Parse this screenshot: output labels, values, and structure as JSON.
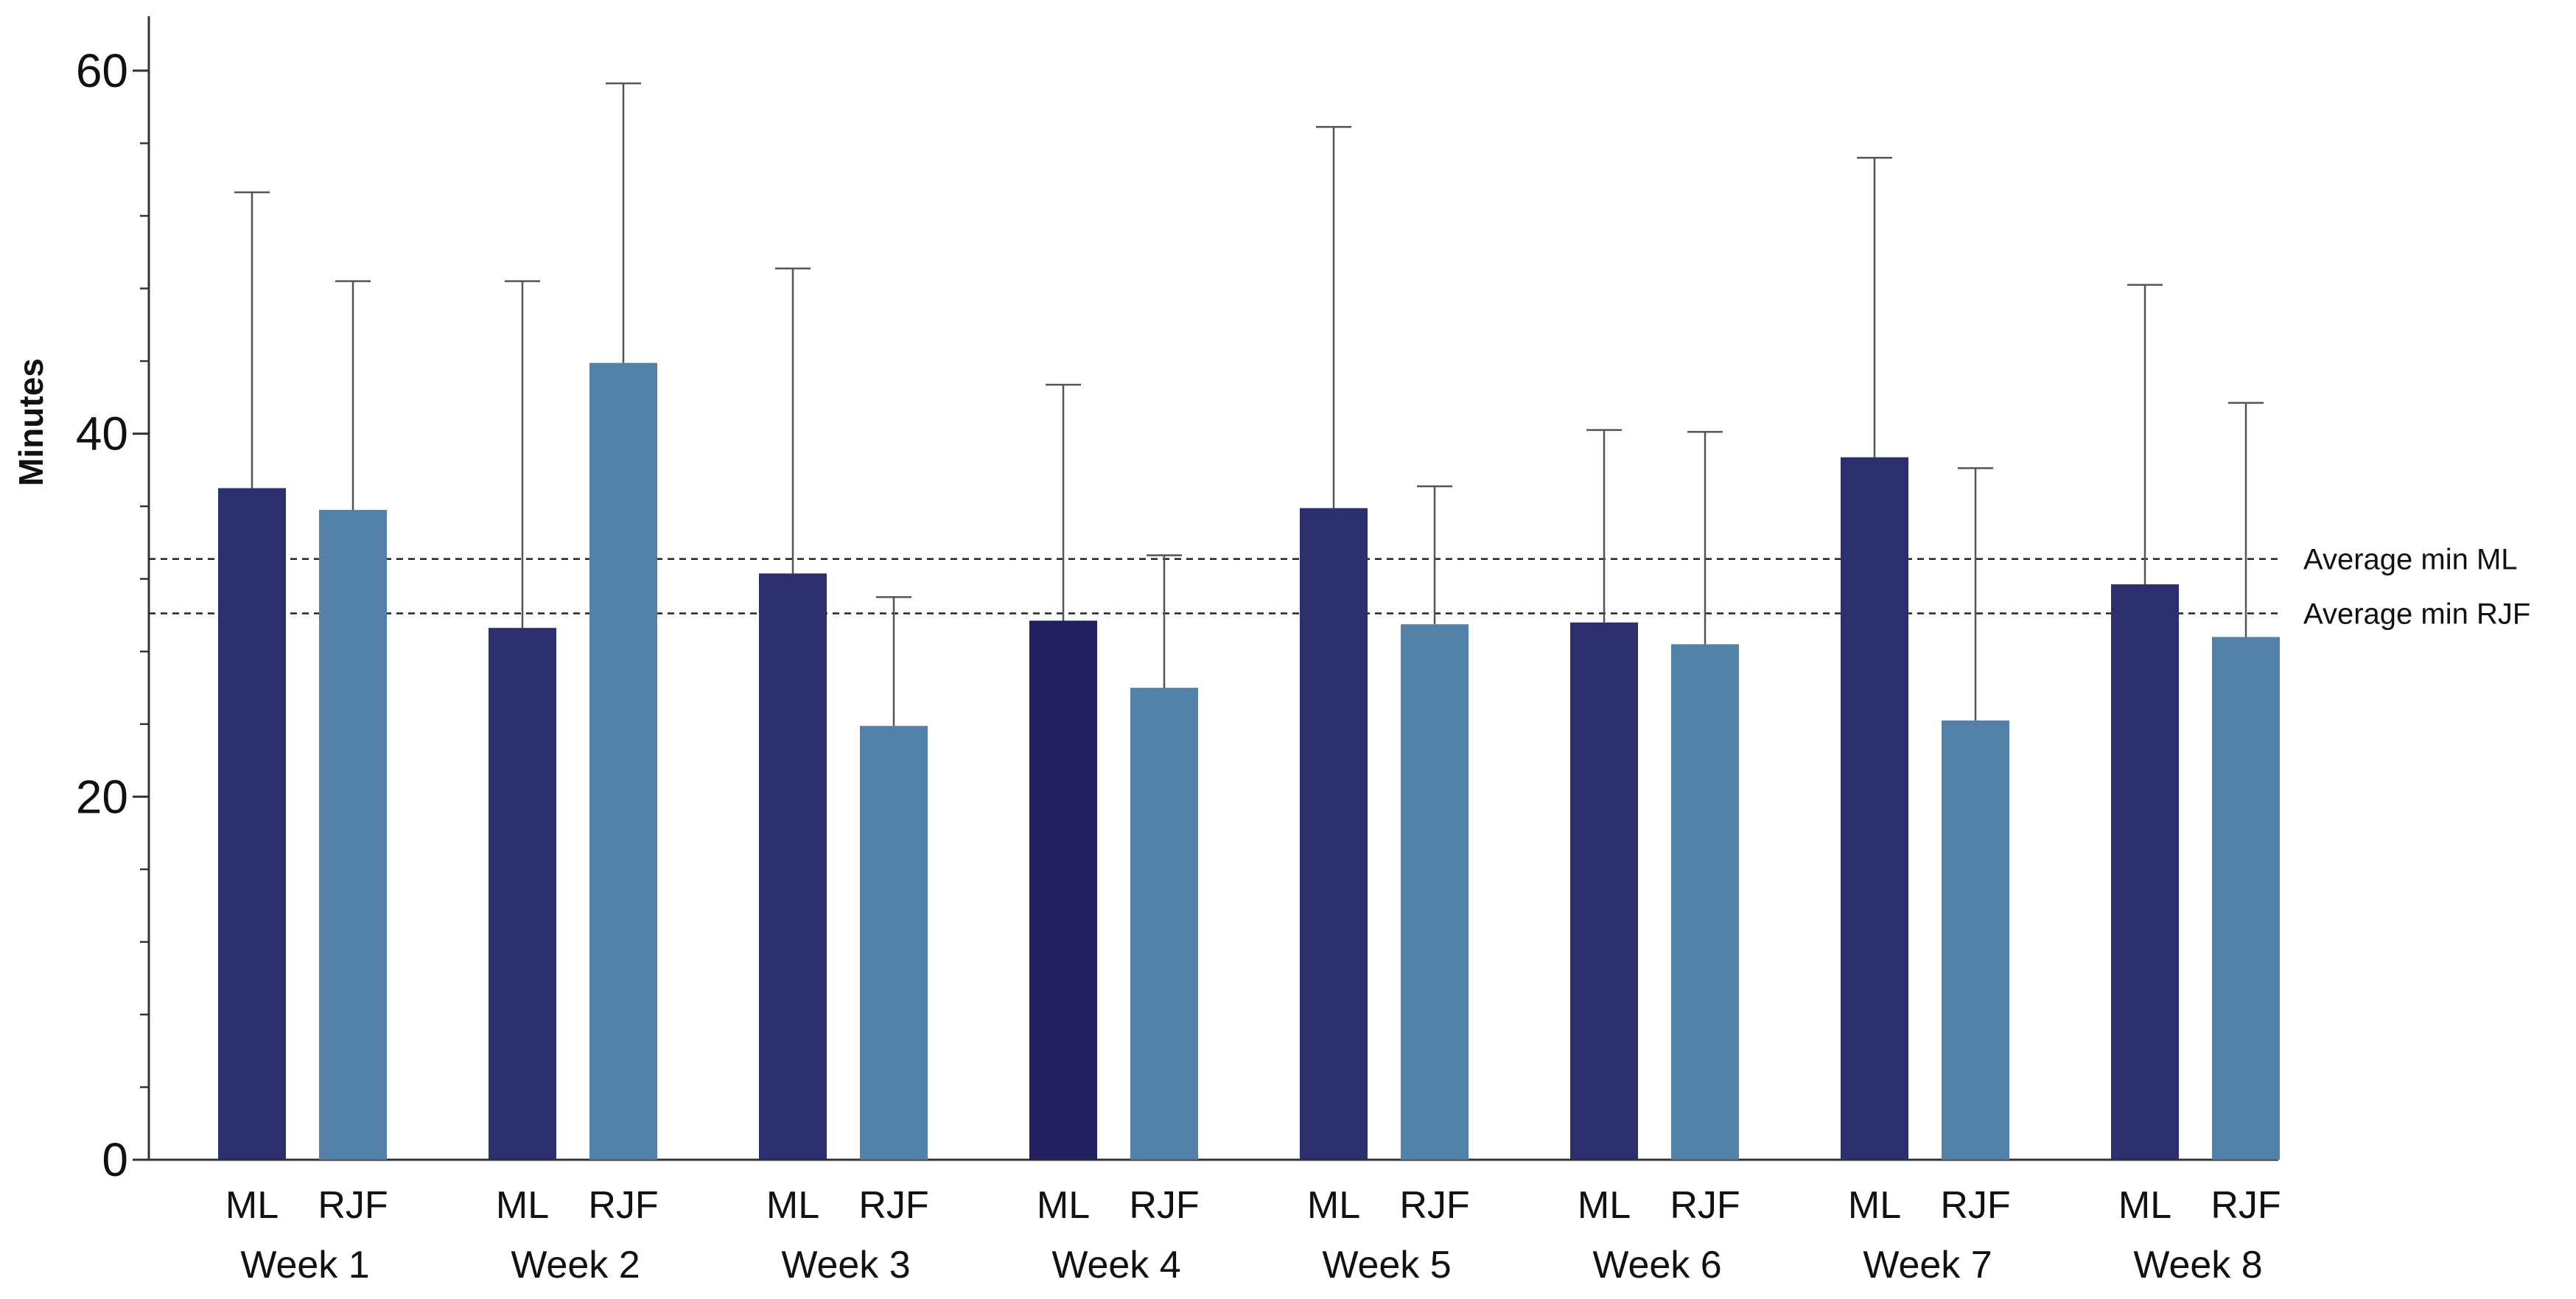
{
  "chart_data": {
    "type": "bar",
    "ylabel": "Minutes",
    "xlabel": "",
    "title": "",
    "ylim": [
      0,
      63
    ],
    "y_major_ticks": [
      0,
      20,
      40,
      60
    ],
    "y_minor_tick_step": 4,
    "groups": [
      "Week 1",
      "Week 2",
      "Week 3",
      "Week 4",
      "Week 5",
      "Week 6",
      "Week 7",
      "Week 8"
    ],
    "series": [
      {
        "name": "ML",
        "color": "#2c2f6e",
        "values": [
          37.0,
          29.3,
          32.3,
          29.7,
          35.9,
          29.6,
          38.7,
          31.7
        ],
        "error_upper": [
          53.3,
          48.4,
          49.1,
          42.7,
          56.9,
          40.2,
          55.2,
          48.2
        ]
      },
      {
        "name": "RJF",
        "color": "#5280a6",
        "values": [
          35.8,
          43.9,
          23.9,
          26.0,
          29.5,
          28.4,
          24.2,
          28.8
        ],
        "error_upper": [
          48.4,
          59.3,
          31.0,
          33.3,
          37.1,
          40.1,
          38.1,
          41.7
        ]
      }
    ],
    "highlight_bar": {
      "series": "ML",
      "group": "Week 4",
      "color": "#221f5e"
    },
    "reference_lines": [
      {
        "label": "Average min ML",
        "value": 33.1
      },
      {
        "label": "Average min RJF",
        "value": 30.1
      }
    ],
    "grid": false,
    "legend": "none"
  }
}
